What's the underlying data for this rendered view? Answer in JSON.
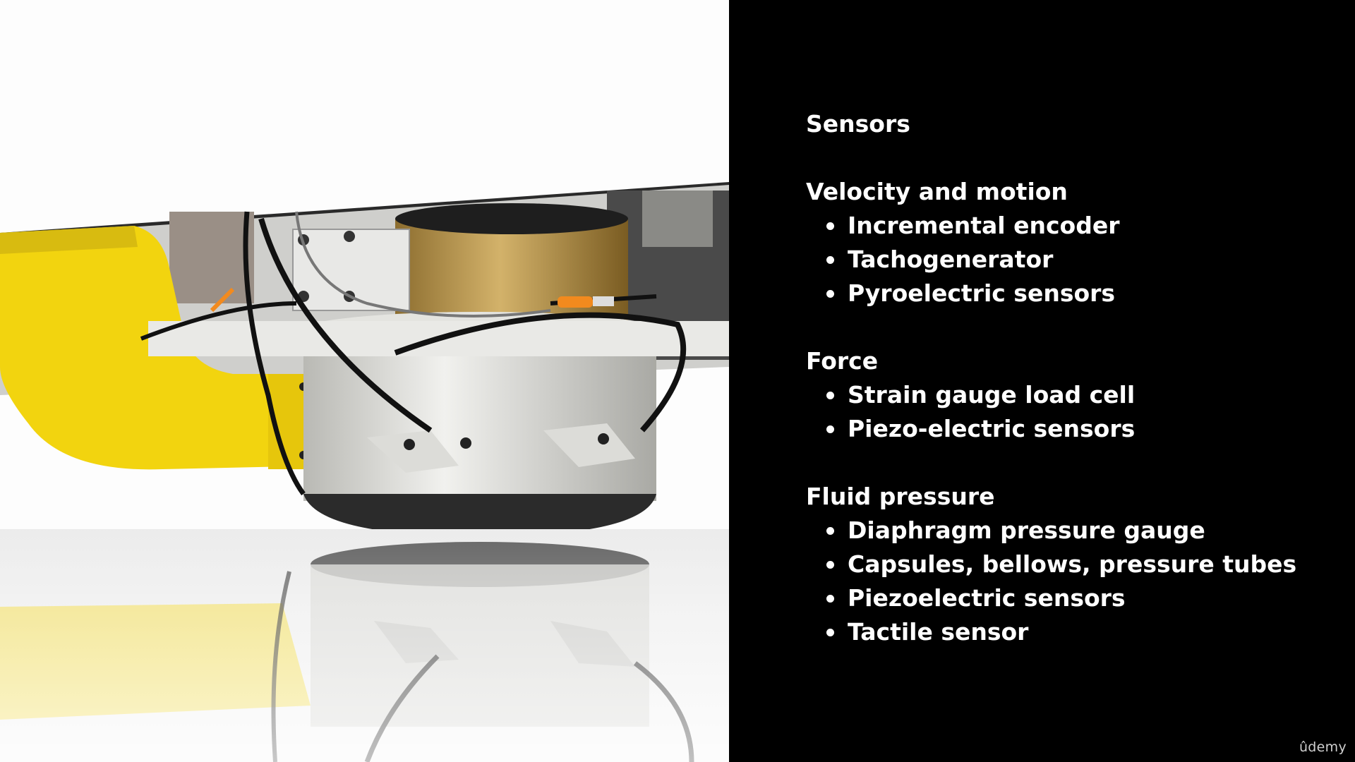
{
  "slide": {
    "title": "Sensors",
    "sections": [
      {
        "heading": "Velocity and motion",
        "items": [
          "Incremental encoder",
          "Tachogenerator",
          "Pyroelectric sensors"
        ]
      },
      {
        "heading": "Force",
        "items": [
          "Strain gauge load cell",
          "Piezo-electric sensors"
        ]
      },
      {
        "heading": "Fluid pressure",
        "items": [
          "Diaphragm pressure gauge",
          "Capsules, bellows, pressure tubes",
          "Piezoelectric sensors",
          "Tactile sensor"
        ]
      }
    ]
  },
  "photo": {
    "icon": "robot-gripper-photo"
  },
  "watermark": {
    "text": "ûdemy"
  },
  "colors": {
    "background": "#000000",
    "text": "#ffffff",
    "robot_arm": "#f2d40f"
  }
}
